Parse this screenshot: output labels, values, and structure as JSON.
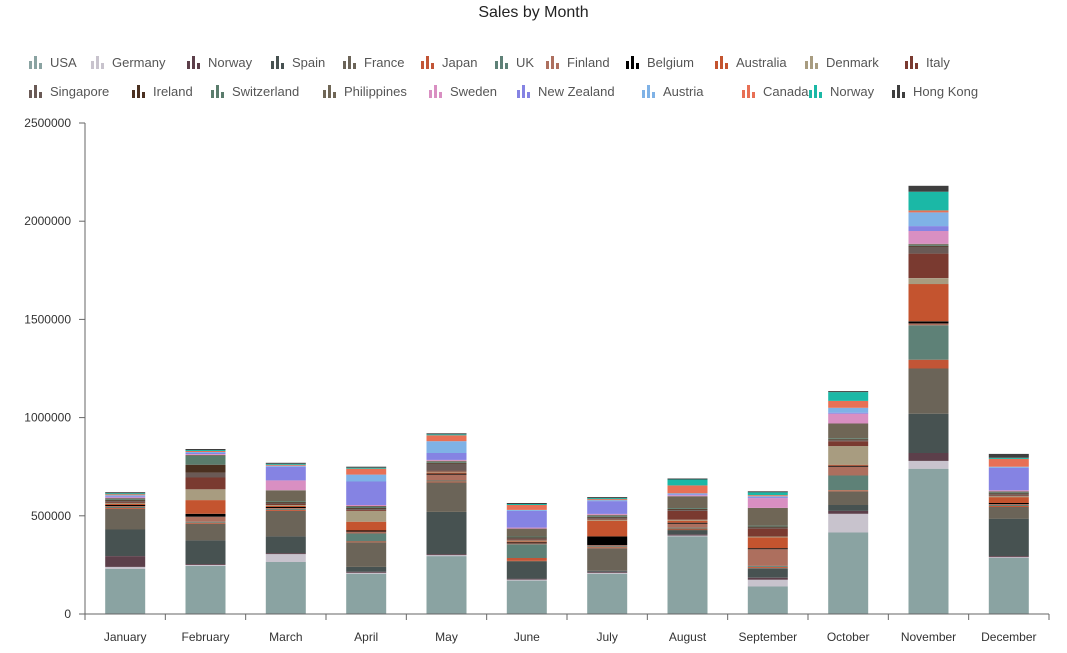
{
  "chart_data": {
    "type": "bar",
    "stacked": true,
    "title": "Sales by Month",
    "xlabel": "",
    "ylabel": "",
    "ylim": [
      0,
      2500000
    ],
    "yticks": [
      0,
      500000,
      1000000,
      1500000,
      2000000,
      2500000
    ],
    "ytick_labels": [
      "0",
      "500000",
      "1000000",
      "1500000",
      "2000000",
      "2500000"
    ],
    "grid": false,
    "legend_position": "top-left",
    "categories": [
      "January",
      "February",
      "March",
      "April",
      "May",
      "June",
      "July",
      "August",
      "September",
      "October",
      "November",
      "December"
    ],
    "series": [
      {
        "name": "USA",
        "color": "#8aa3a2",
        "values": [
          230000,
          245000,
          265000,
          205000,
          295000,
          170000,
          205000,
          395000,
          140000,
          415000,
          740000,
          285000
        ]
      },
      {
        "name": "Germany",
        "color": "#c8c3cd",
        "values": [
          10000,
          5000,
          40000,
          5000,
          5000,
          5000,
          5000,
          5000,
          35000,
          95000,
          40000,
          5000
        ]
      },
      {
        "name": "Norway",
        "color": "#5c3f4a",
        "values": [
          55000,
          5000,
          5000,
          5000,
          5000,
          5000,
          5000,
          5000,
          10000,
          15000,
          40000,
          5000
        ]
      },
      {
        "name": "Spain",
        "color": "#475251",
        "values": [
          135000,
          120000,
          85000,
          25000,
          215000,
          85000,
          5000,
          20000,
          45000,
          30000,
          200000,
          190000
        ]
      },
      {
        "name": "France",
        "color": "#6b6458",
        "values": [
          105000,
          85000,
          130000,
          125000,
          150000,
          5000,
          115000,
          5000,
          5000,
          70000,
          230000,
          60000
        ]
      },
      {
        "name": "Japan",
        "color": "#c25536",
        "values": [
          5000,
          5000,
          5000,
          5000,
          5000,
          15000,
          5000,
          5000,
          5000,
          5000,
          45000,
          5000
        ]
      },
      {
        "name": "UK",
        "color": "#5e8177",
        "values": [
          5000,
          5000,
          5000,
          40000,
          5000,
          70000,
          5000,
          5000,
          5000,
          75000,
          175000,
          5000
        ]
      },
      {
        "name": "Finland",
        "color": "#ad6f5e",
        "values": [
          5000,
          25000,
          5000,
          10000,
          30000,
          5000,
          5000,
          20000,
          85000,
          45000,
          10000,
          5000
        ]
      },
      {
        "name": "Belgium",
        "color": "#000000",
        "values": [
          5000,
          15000,
          5000,
          5000,
          5000,
          5000,
          45000,
          5000,
          5000,
          5000,
          10000,
          5000
        ]
      },
      {
        "name": "Australia",
        "color": "#c4542f",
        "values": [
          5000,
          70000,
          5000,
          45000,
          5000,
          5000,
          80000,
          10000,
          55000,
          5000,
          190000,
          30000
        ]
      },
      {
        "name": "Denmark",
        "color": "#a89c80",
        "values": [
          5000,
          55000,
          5000,
          55000,
          5000,
          5000,
          5000,
          5000,
          5000,
          95000,
          30000,
          5000
        ]
      },
      {
        "name": "Italy",
        "color": "#7a3a30",
        "values": [
          5000,
          60000,
          5000,
          5000,
          5000,
          5000,
          5000,
          45000,
          40000,
          25000,
          125000,
          5000
        ]
      },
      {
        "name": "Singapore",
        "color": "#6a5a56",
        "values": [
          5000,
          25000,
          5000,
          5000,
          35000,
          5000,
          5000,
          5000,
          5000,
          5000,
          35000,
          5000
        ]
      },
      {
        "name": "Ireland",
        "color": "#4a3020",
        "values": [
          5000,
          40000,
          5000,
          5000,
          5000,
          5000,
          5000,
          5000,
          5000,
          5000,
          5000,
          5000
        ]
      },
      {
        "name": "Switzerland",
        "color": "#5a7c6c",
        "values": [
          5000,
          45000,
          5000,
          5000,
          5000,
          5000,
          5000,
          5000,
          5000,
          5000,
          5000,
          5000
        ]
      },
      {
        "name": "Philippines",
        "color": "#6f6656",
        "values": [
          5000,
          5000,
          55000,
          5000,
          5000,
          40000,
          5000,
          60000,
          90000,
          75000,
          5000,
          5000
        ]
      },
      {
        "name": "Sweden",
        "color": "#d98fc2",
        "values": [
          5000,
          5000,
          50000,
          5000,
          5000,
          5000,
          5000,
          5000,
          50000,
          50000,
          65000,
          5000
        ]
      },
      {
        "name": "New Zealand",
        "color": "#8583e3",
        "values": [
          5000,
          5000,
          70000,
          120000,
          35000,
          85000,
          65000,
          5000,
          5000,
          5000,
          25000,
          115000
        ]
      },
      {
        "name": "Austria",
        "color": "#7fb2e6",
        "values": [
          5000,
          5000,
          5000,
          35000,
          60000,
          5000,
          5000,
          5000,
          5000,
          25000,
          70000,
          5000
        ]
      },
      {
        "name": "Canada",
        "color": "#e87055",
        "values": [
          5000,
          5000,
          5000,
          30000,
          30000,
          25000,
          5000,
          40000,
          5000,
          35000,
          10000,
          40000
        ]
      },
      {
        "name": "Norway",
        "color": "#1bb8a6",
        "values": [
          5000,
          5000,
          5000,
          5000,
          5000,
          5000,
          5000,
          30000,
          15000,
          45000,
          95000,
          5000
        ]
      },
      {
        "name": "Hong Kong",
        "color": "#3e3e3e",
        "values": [
          5000,
          5000,
          5000,
          5000,
          5000,
          5000,
          5000,
          5000,
          5000,
          5000,
          30000,
          20000
        ]
      }
    ]
  }
}
